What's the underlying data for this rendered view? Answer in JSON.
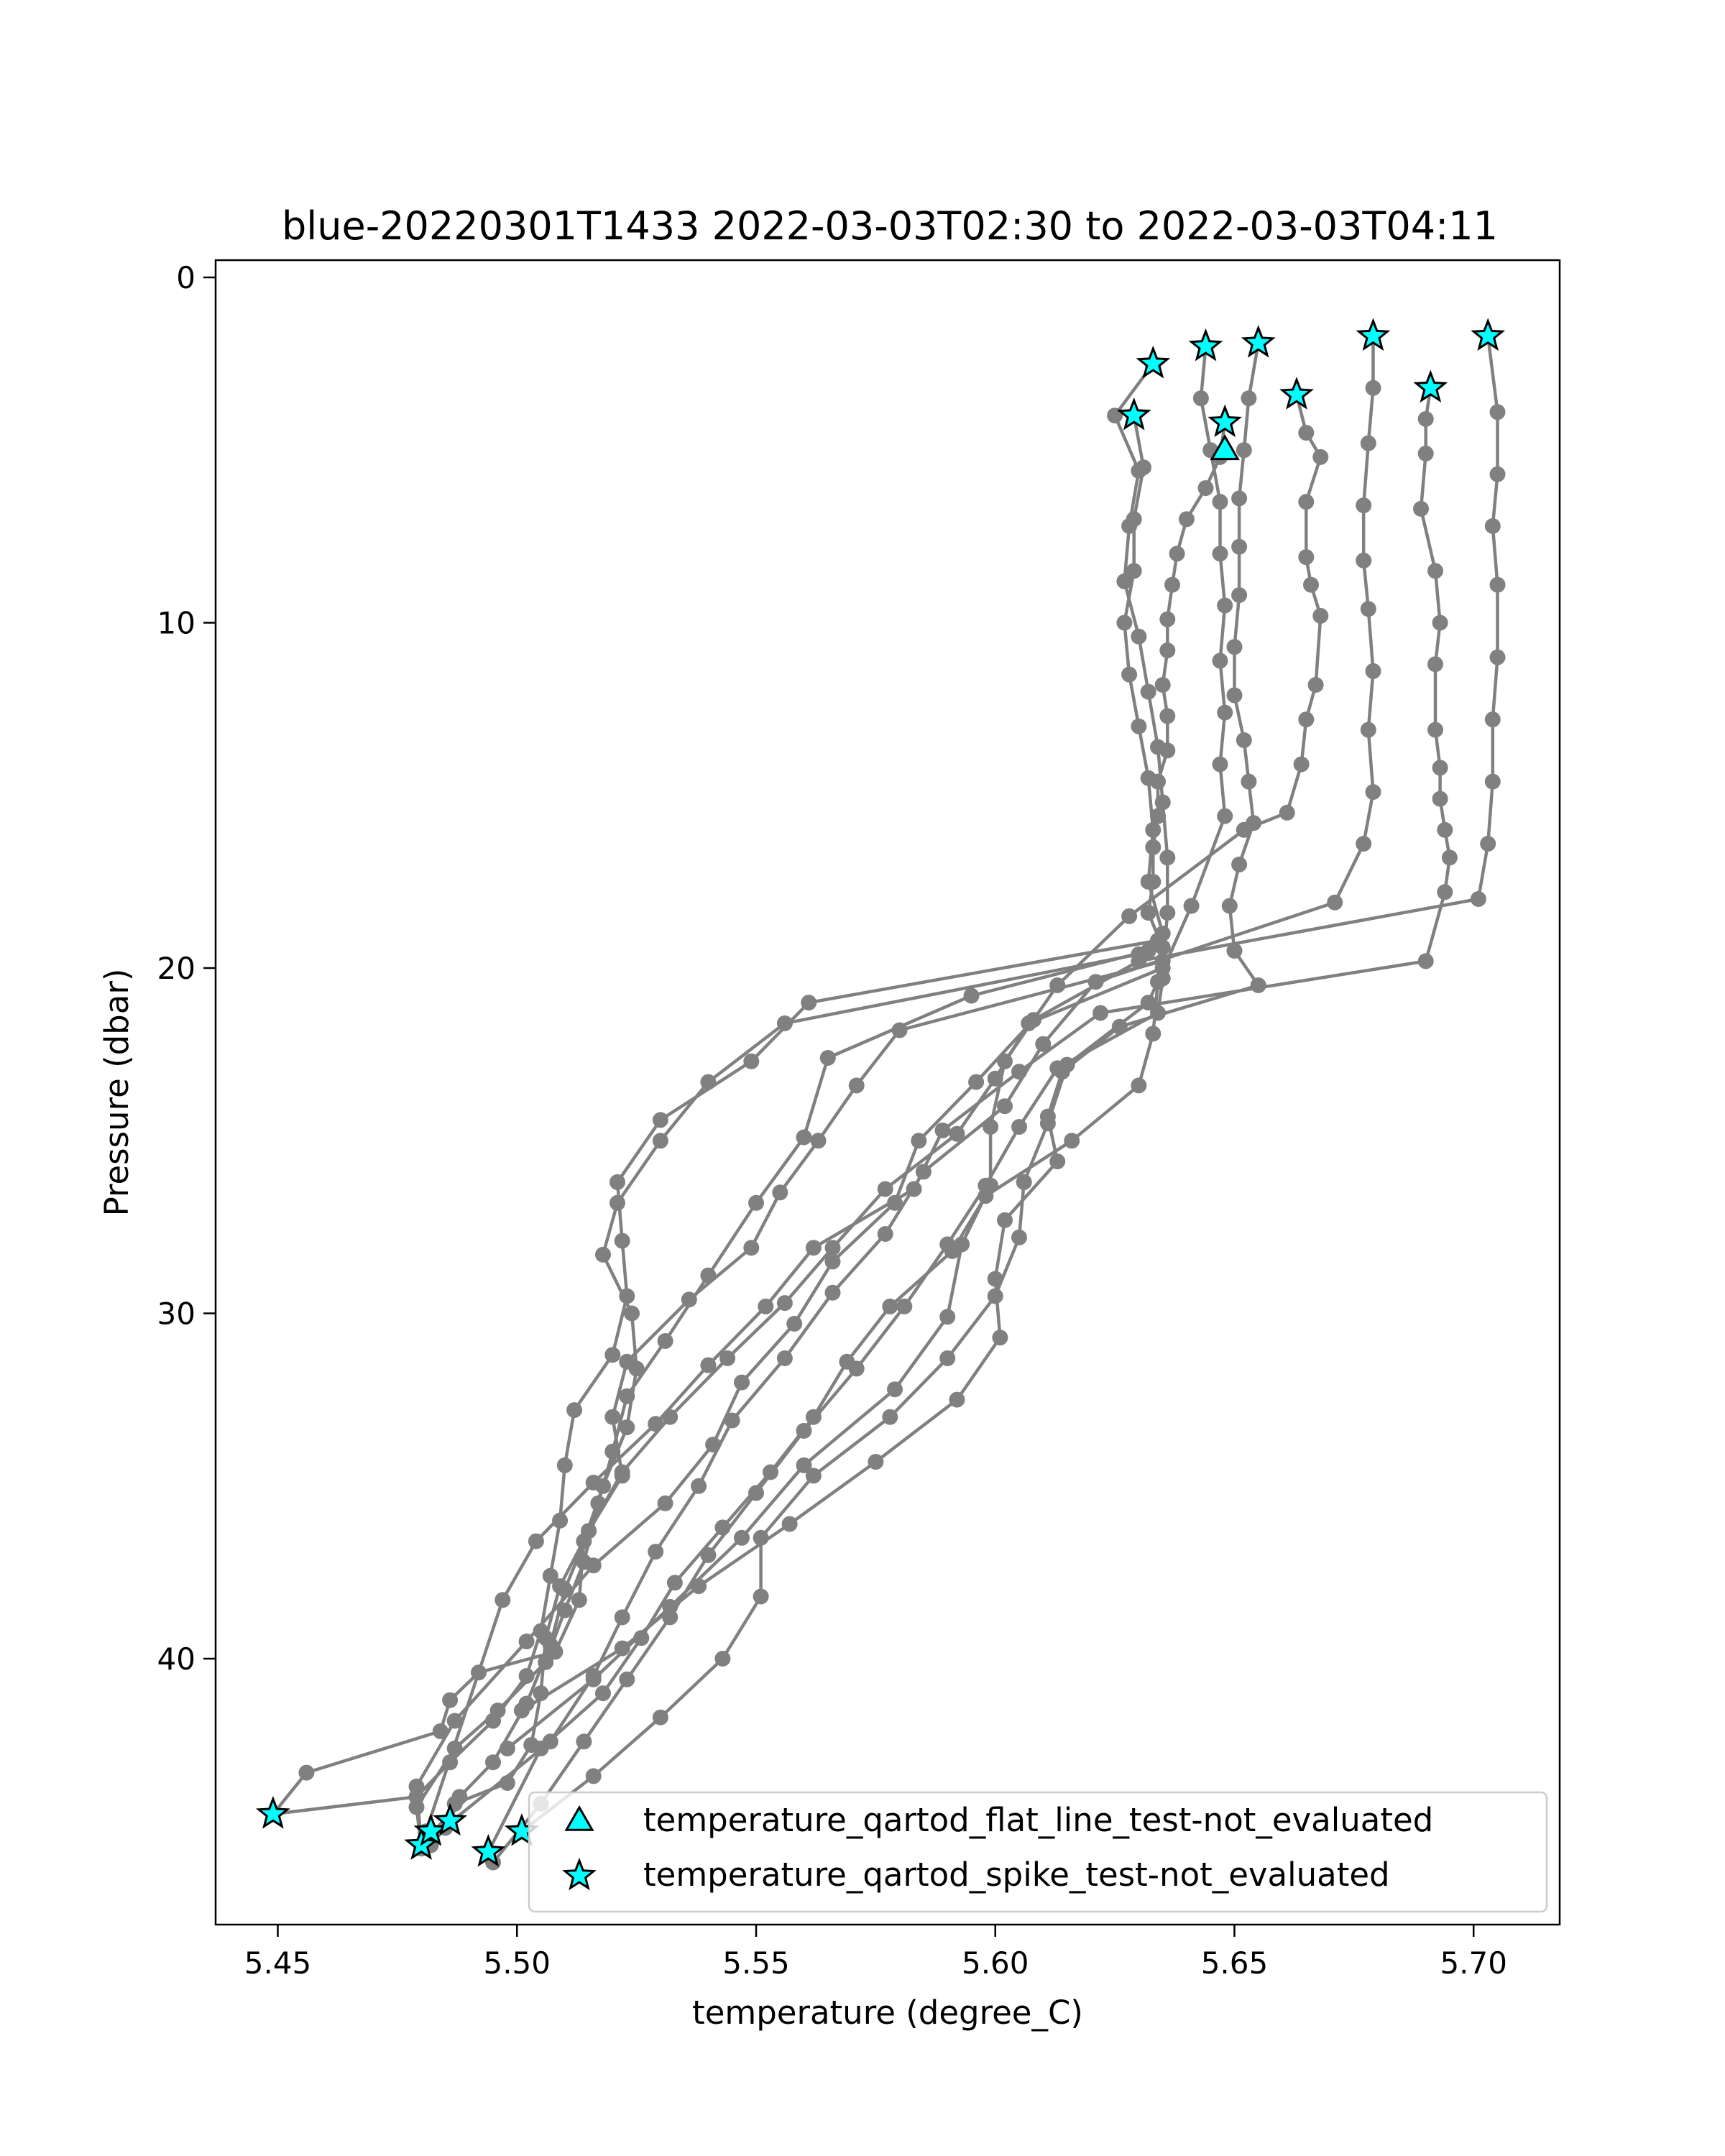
{
  "chart_data": {
    "type": "scatter",
    "title": "blue-20220301T1433 2022-03-03T02:30 to 2022-03-03T04:11",
    "xlabel": "temperature (degree_C)",
    "ylabel": "Pressure (dbar)",
    "xlim": [
      5.437,
      5.718
    ],
    "ylim": [
      47.7,
      -0.5
    ],
    "y_inverted": true,
    "grid": false,
    "legend_position": "lower-right",
    "xticks": [
      5.45,
      5.5,
      5.55,
      5.6,
      5.65,
      5.7
    ],
    "xtick_labels": [
      "5.45",
      "5.50",
      "5.55",
      "5.60",
      "5.65",
      "5.70"
    ],
    "yticks": [
      0,
      10,
      20,
      30,
      40
    ],
    "ytick_labels": [
      "0",
      "10",
      "20",
      "30",
      "40"
    ],
    "colors": {
      "profile": "#808080",
      "flag_marker": "#00ffff",
      "flag_edge": "#000000"
    },
    "profiles": [
      {
        "x": [
          5.703,
          5.705,
          5.705,
          5.704,
          5.705,
          5.705,
          5.704,
          5.704,
          5.703,
          5.701,
          5.63,
          5.608,
          5.596,
          5.584,
          5.579,
          5.566,
          5.558,
          5.547,
          5.541,
          5.531,
          5.516,
          5.502,
          5.487,
          5.479,
          5.48
        ],
        "y": [
          1.7,
          3.9,
          5.7,
          7.2,
          8.9,
          11.0,
          12.8,
          14.6,
          16.4,
          18.0,
          19.8,
          21.5,
          23.3,
          25.0,
          26.8,
          28.5,
          30.3,
          32.0,
          33.8,
          35.5,
          37.3,
          39.5,
          41.8,
          43.7,
          45.4
        ]
      },
      {
        "x": [
          5.691,
          5.69,
          5.69,
          5.689,
          5.692,
          5.693,
          5.692,
          5.692,
          5.693,
          5.693,
          5.694,
          5.695,
          5.694,
          5.69,
          5.622,
          5.605,
          5.589,
          5.583,
          5.562,
          5.552,
          5.54,
          5.529,
          5.516,
          5.504,
          5.497,
          5.481
        ],
        "y": [
          3.2,
          4.1,
          5.1,
          6.7,
          8.5,
          10.0,
          11.2,
          13.1,
          14.2,
          15.1,
          16.0,
          16.8,
          17.8,
          19.8,
          21.3,
          23.0,
          24.7,
          26.4,
          28.1,
          29.8,
          31.5,
          33.2,
          34.9,
          36.6,
          38.3,
          45.0
        ]
      },
      {
        "x": [
          5.679,
          5.679,
          5.678,
          5.677,
          5.677,
          5.678,
          5.679,
          5.678,
          5.679,
          5.677,
          5.671,
          5.621,
          5.61,
          5.602,
          5.585,
          5.577,
          5.566,
          5.556,
          5.545,
          5.538,
          5.529,
          5.522,
          5.516,
          5.507,
          5.482
        ],
        "y": [
          1.7,
          3.2,
          4.8,
          6.6,
          8.2,
          9.6,
          11.4,
          13.1,
          14.9,
          16.4,
          18.1,
          20.4,
          22.2,
          24.0,
          25.9,
          27.7,
          29.4,
          31.3,
          33.1,
          35.0,
          36.9,
          38.8,
          40.5,
          42.4,
          45.2
        ]
      },
      {
        "x": [
          5.663,
          5.665,
          5.668,
          5.665,
          5.665,
          5.666,
          5.668,
          5.667,
          5.665,
          5.664,
          5.661,
          5.652,
          5.628,
          5.613,
          5.602,
          5.599,
          5.599,
          5.593,
          5.59,
          5.579,
          5.56,
          5.547,
          5.532,
          5.516,
          5.498
        ],
        "y": [
          3.4,
          4.5,
          5.2,
          6.5,
          8.1,
          8.9,
          9.8,
          11.8,
          12.8,
          14.1,
          15.5,
          16.0,
          18.5,
          20.5,
          22.7,
          24.6,
          26.3,
          28.0,
          30.1,
          32.2,
          34.4,
          36.5,
          38.5,
          40.6,
          42.6
        ]
      },
      {
        "x": [
          5.655,
          5.653,
          5.652,
          5.651,
          5.651,
          5.651,
          5.65,
          5.65,
          5.652,
          5.653,
          5.654,
          5.651,
          5.649,
          5.65,
          5.655,
          5.626,
          5.614,
          5.611,
          5.613,
          5.602,
          5.6,
          5.601,
          5.592,
          5.575,
          5.557,
          5.538,
          5.522,
          5.501
        ],
        "y": [
          1.9,
          3.5,
          5.0,
          6.4,
          7.8,
          9.2,
          10.7,
          12.1,
          13.4,
          14.6,
          15.8,
          17.0,
          18.2,
          19.5,
          20.5,
          21.7,
          23.0,
          24.3,
          25.6,
          27.3,
          29.0,
          30.7,
          32.5,
          34.3,
          36.1,
          37.9,
          39.7,
          41.5
        ]
      },
      {
        "x": [
          5.644,
          5.643,
          5.645,
          5.647,
          5.647,
          5.648,
          5.647,
          5.648,
          5.647,
          5.648,
          5.641,
          5.632,
          5.615,
          5.611,
          5.606,
          5.605,
          5.6,
          5.59,
          5.578,
          5.562,
          5.551,
          5.551,
          5.543,
          5.53,
          5.516,
          5.501
        ],
        "y": [
          2.0,
          3.5,
          5.0,
          6.5,
          8.0,
          9.5,
          11.1,
          12.6,
          14.1,
          15.6,
          18.2,
          21.0,
          22.8,
          24.5,
          26.2,
          27.8,
          29.5,
          31.3,
          33.0,
          34.7,
          36.5,
          38.2,
          40.0,
          41.7,
          43.4,
          45.0
        ]
      },
      {
        "x": [
          5.648,
          5.647,
          5.644,
          5.64,
          5.638,
          5.637,
          5.636,
          5.636,
          5.635,
          5.636,
          5.636,
          5.634,
          5.634,
          5.633,
          5.633,
          5.632,
          5.635,
          5.635,
          5.634,
          5.613,
          5.605,
          5.598,
          5.59,
          5.581,
          5.571,
          5.56,
          5.55,
          5.54,
          5.532,
          5.523,
          5.514,
          5.505,
          5.495
        ],
        "y": [
          4.2,
          5.2,
          6.1,
          7.0,
          8.0,
          8.9,
          9.9,
          10.8,
          11.8,
          12.7,
          13.7,
          14.6,
          15.6,
          16.5,
          17.5,
          18.4,
          19.4,
          20.3,
          21.3,
          22.9,
          24.6,
          26.3,
          28.0,
          29.8,
          31.6,
          33.4,
          35.2,
          37.0,
          38.8,
          40.6,
          42.4,
          44.2,
          45.9
        ]
      },
      {
        "x": [
          5.629,
          5.631,
          5.629,
          5.629,
          5.627,
          5.628,
          5.63,
          5.632,
          5.633,
          5.632,
          5.635,
          5.634,
          5.633,
          5.63,
          5.616,
          5.598,
          5.591,
          5.578,
          5.569,
          5.562,
          5.553,
          5.543,
          5.533,
          5.526,
          5.518,
          5.505,
          5.494
        ],
        "y": [
          4.0,
          5.5,
          7.0,
          8.5,
          10.0,
          11.5,
          13.0,
          14.5,
          16.0,
          17.5,
          19.0,
          20.4,
          21.9,
          23.4,
          25.0,
          26.6,
          28.2,
          29.8,
          31.4,
          33.0,
          34.6,
          36.2,
          37.8,
          39.4,
          41.0,
          42.6,
          45.6
        ]
      },
      {
        "x": [
          5.633,
          5.625,
          5.63,
          5.628,
          5.627,
          5.63,
          5.632,
          5.634,
          5.635,
          5.636,
          5.636,
          5.635,
          5.607,
          5.6,
          5.592,
          5.577,
          5.566,
          5.556,
          5.544,
          5.532,
          5.522,
          5.515,
          5.51,
          5.507,
          5.502,
          5.495,
          5.488,
          5.486
        ],
        "y": [
          2.5,
          4.0,
          5.6,
          7.2,
          8.8,
          10.4,
          12.0,
          13.6,
          15.2,
          16.8,
          18.4,
          20.0,
          21.6,
          23.2,
          24.8,
          26.4,
          28.1,
          29.7,
          31.3,
          33.0,
          34.6,
          36.3,
          38.0,
          39.6,
          41.3,
          43.0,
          44.0,
          44.7
        ]
      },
      {
        "x": [
          5.632,
          5.595,
          5.565,
          5.56,
          5.55,
          5.54,
          5.531,
          5.523,
          5.52,
          5.517,
          5.514,
          5.51,
          5.506,
          5.496,
          5.487,
          5.479,
          5.48
        ],
        "y": [
          19.5,
          20.8,
          22.6,
          24.9,
          26.8,
          28.9,
          30.8,
          32.4,
          34.0,
          35.5,
          37.2,
          38.6,
          40.1,
          41.5,
          42.6,
          44.3,
          45.5
        ]
      },
      {
        "x": [
          5.635,
          5.58,
          5.571,
          5.563,
          5.555,
          5.549,
          5.536,
          5.523,
          5.52,
          5.522,
          5.515,
          5.509,
          5.506,
          5.505,
          5.503,
          5.498,
          5.487,
          5.485,
          5.482
        ],
        "y": [
          19.8,
          21.8,
          23.4,
          25.0,
          26.5,
          28.1,
          29.6,
          31.4,
          33.0,
          34.7,
          36.3,
          37.9,
          39.4,
          41.0,
          42.5,
          43.6,
          44.2,
          44.9,
          45.4
        ]
      },
      {
        "x": [
          5.634,
          5.561,
          5.549,
          5.53,
          5.521,
          5.522,
          5.523,
          5.52,
          5.512,
          5.51,
          5.509,
          5.507,
          5.505,
          5.502,
          5.495,
          5.486,
          5.479,
          5.449
        ],
        "y": [
          19.2,
          21.0,
          22.7,
          24.4,
          26.2,
          27.9,
          29.5,
          31.2,
          32.8,
          34.4,
          36.0,
          37.6,
          39.2,
          40.5,
          41.8,
          43.0,
          44.0,
          44.5
        ]
      },
      {
        "x": [
          5.63,
          5.556,
          5.54,
          5.53,
          5.521,
          5.518,
          5.524,
          5.525,
          5.523,
          5.518,
          5.514,
          5.513,
          5.508,
          5.492,
          5.486,
          5.484,
          5.456,
          5.449
        ],
        "y": [
          19.6,
          21.6,
          23.3,
          25.0,
          26.8,
          28.3,
          30.0,
          31.6,
          33.3,
          35.0,
          36.6,
          38.3,
          39.8,
          40.4,
          41.2,
          42.1,
          43.3,
          44.5
        ]
      }
    ],
    "series": [
      {
        "name": "temperature_qartod_flat_line_test-not_evaluated",
        "marker": "triangle",
        "x": [
          5.648
        ],
        "y": [
          5.0
        ]
      },
      {
        "name": "temperature_qartod_spike_test-not_evaluated",
        "marker": "star",
        "x": [
          5.703,
          5.691,
          5.679,
          5.663,
          5.655,
          5.644,
          5.648,
          5.629,
          5.633,
          5.449,
          5.48,
          5.482,
          5.486,
          5.494,
          5.501
        ],
        "y": [
          1.7,
          3.2,
          1.7,
          3.4,
          1.9,
          2.0,
          4.2,
          4.0,
          2.5,
          44.5,
          45.4,
          45.0,
          44.7,
          45.6,
          45.0
        ]
      }
    ]
  }
}
